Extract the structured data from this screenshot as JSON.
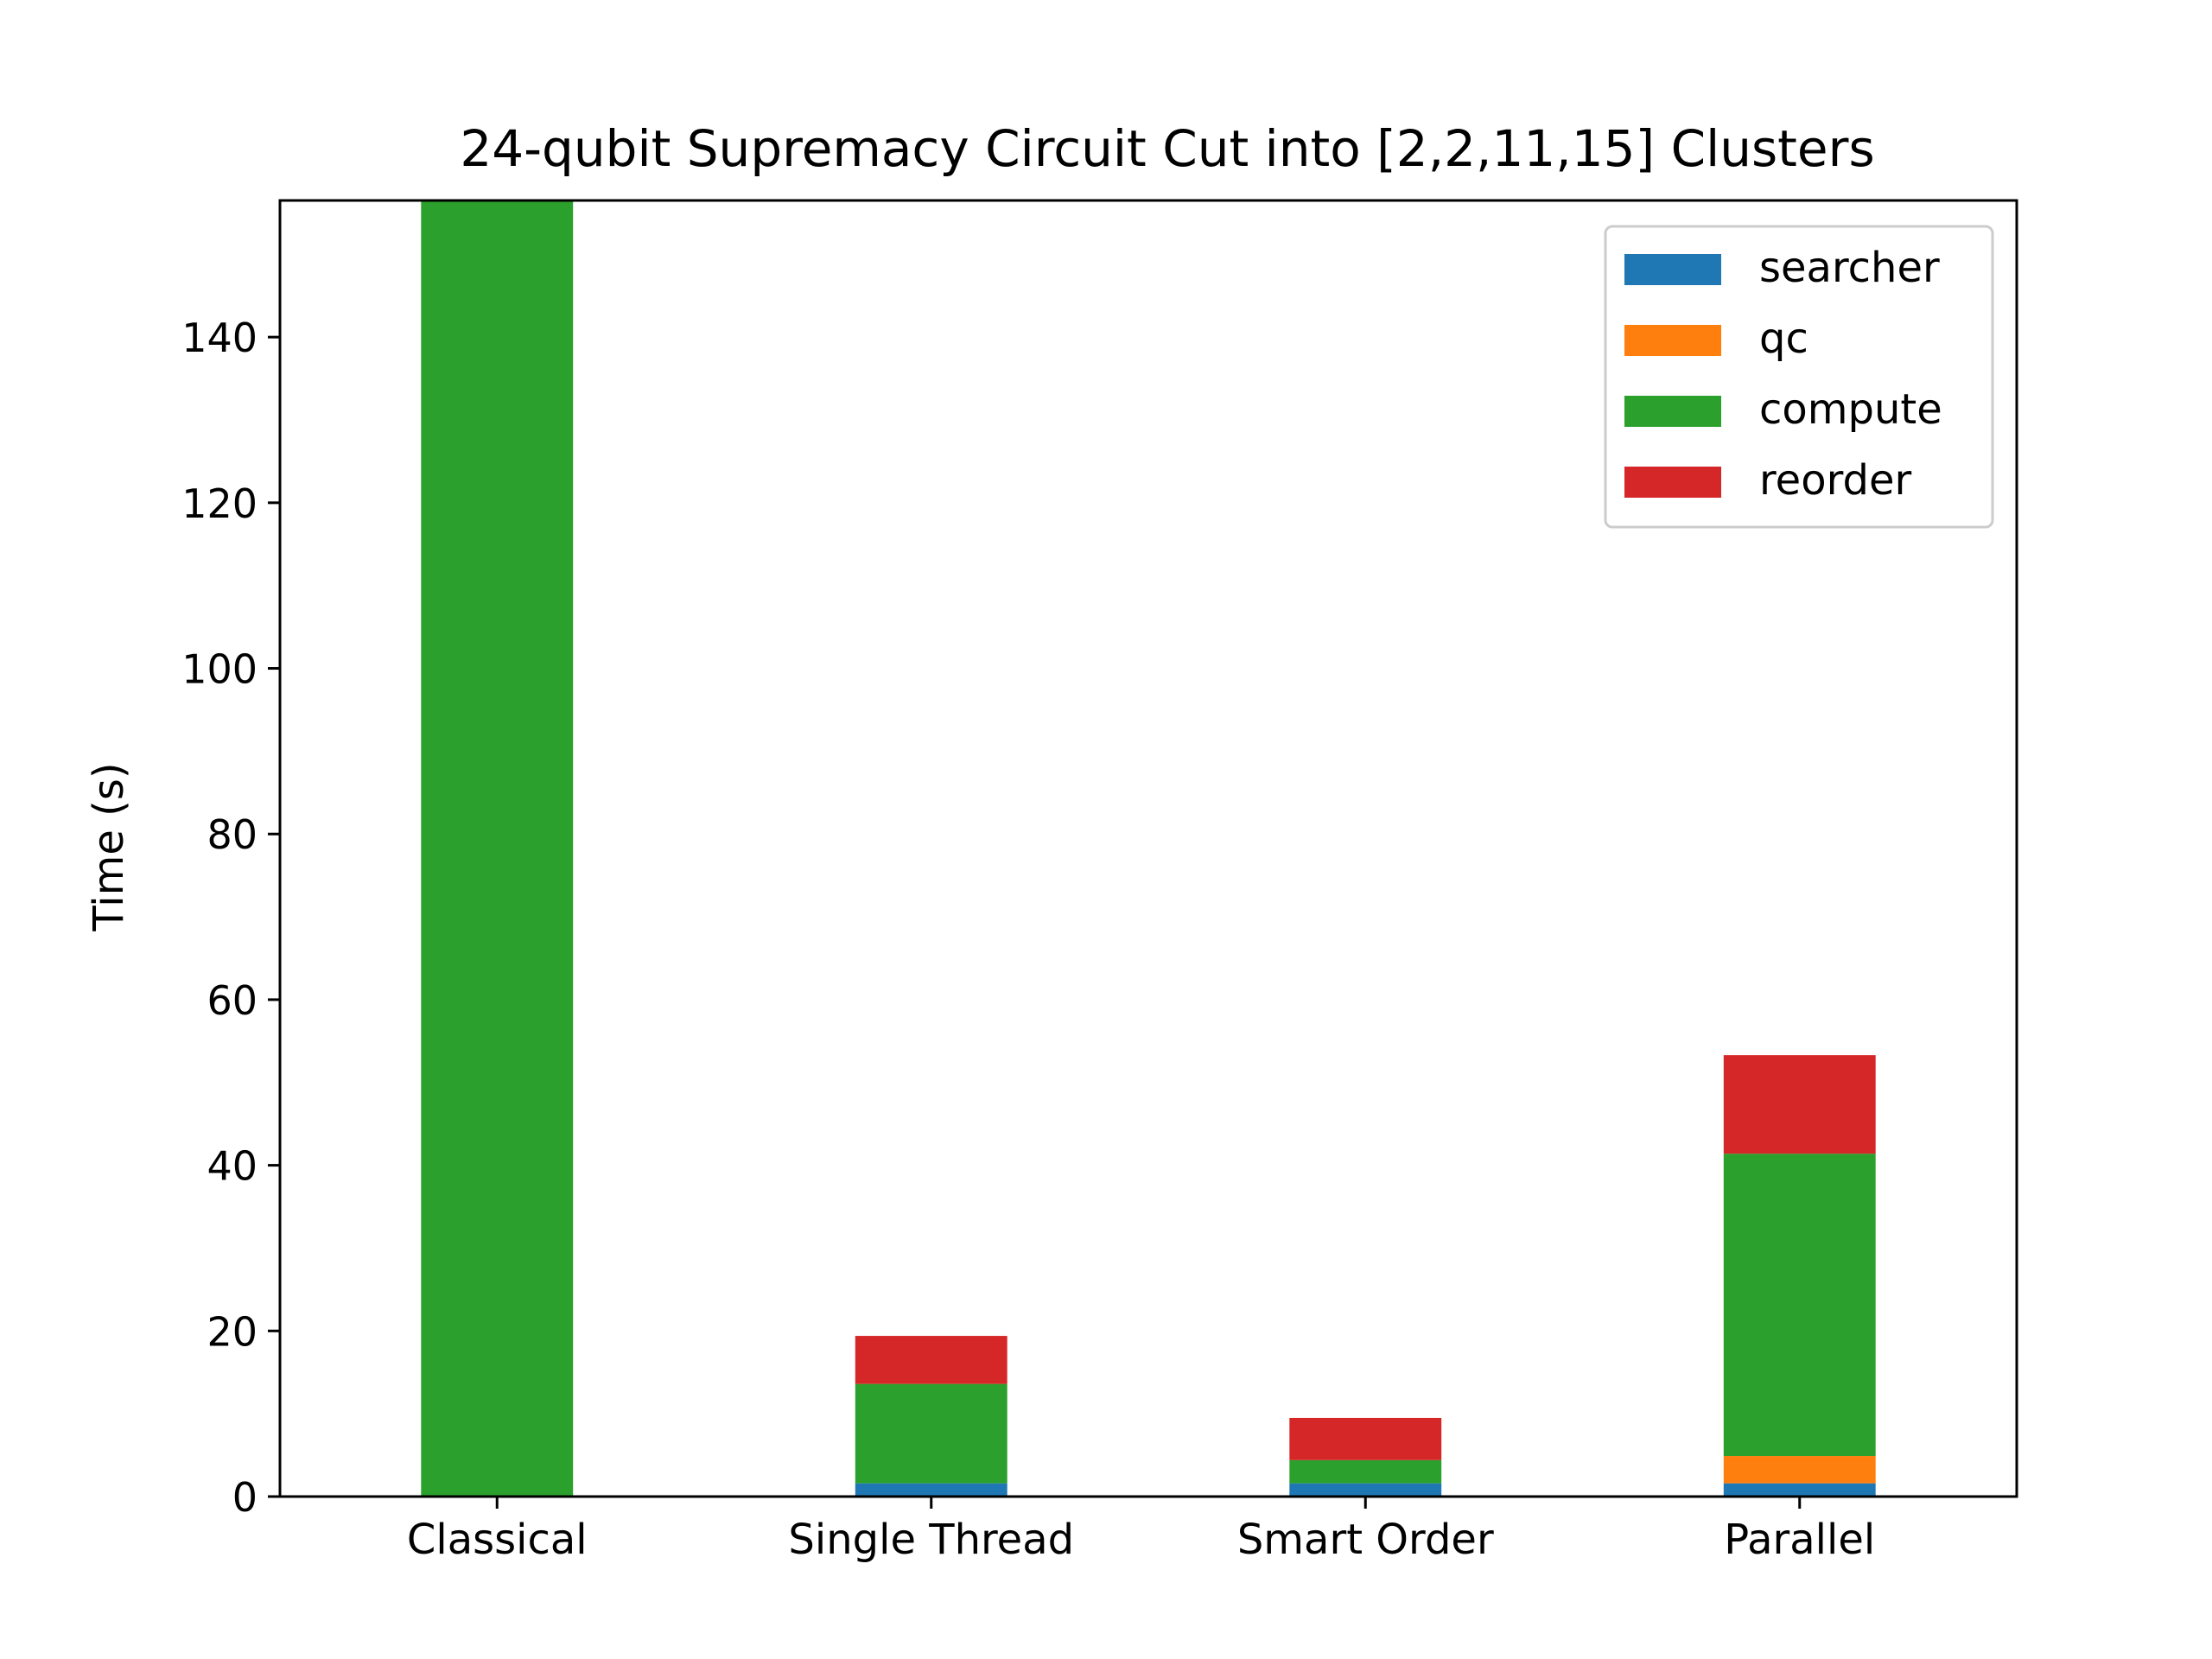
{
  "chart_data": {
    "type": "bar",
    "stacked": true,
    "title": "24-qubit Supremacy Circuit Cut into [2,2,11,15] Clusters",
    "xlabel": "",
    "ylabel": "Time (s)",
    "categories": [
      "Classical",
      "Single Thread",
      "Smart Order",
      "Parallel"
    ],
    "ylim": [
      0,
      156.5
    ],
    "yticks": [
      0,
      20,
      40,
      60,
      80,
      100,
      120,
      140
    ],
    "grid": false,
    "legend_position": "top-right",
    "series": [
      {
        "name": "searcher",
        "color": "#1f77b4",
        "values": [
          0,
          1.6,
          1.6,
          1.6
        ]
      },
      {
        "name": "qc",
        "color": "#ff7f0e",
        "values": [
          0,
          0,
          0,
          3.3
        ]
      },
      {
        "name": "compute",
        "color": "#2ca02c",
        "values": [
          156.5,
          12.0,
          2.8,
          36.5
        ]
      },
      {
        "name": "reorder",
        "color": "#d62728",
        "values": [
          0,
          5.8,
          5.1,
          11.9
        ]
      }
    ]
  }
}
